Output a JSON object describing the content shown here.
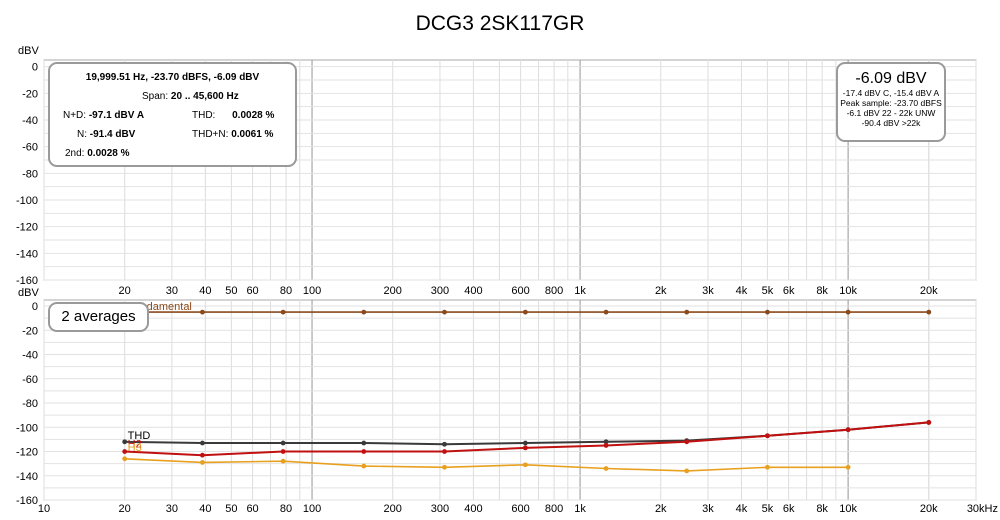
{
  "chart_data": {
    "type": "line",
    "title": "DCG3 2SK117GR",
    "top_panel": {
      "ylabel": "dBV",
      "ylim": [
        -160,
        5
      ],
      "yticks": [
        "0",
        "-20",
        "-40",
        "-60",
        "-80",
        "-100",
        "-120",
        "-140",
        "-160"
      ],
      "xscale": "log",
      "xlim": [
        10,
        30000
      ]
    },
    "bottom_panel": {
      "ylabel": "dBV",
      "ylim": [
        -160,
        5
      ],
      "yticks": [
        "0",
        "-20",
        "-40",
        "-60",
        "-80",
        "-100",
        "-120",
        "-140",
        "-160"
      ],
      "xscale": "log",
      "xlim": [
        10,
        30000
      ],
      "xtick_values": [
        10,
        20,
        30,
        40,
        50,
        60,
        80,
        100,
        200,
        300,
        400,
        600,
        800,
        1000,
        2000,
        3000,
        4000,
        5000,
        6000,
        8000,
        10000,
        20000,
        30000
      ],
      "xtick_labels": [
        "10",
        "20",
        "30",
        "40",
        "50",
        "60",
        "80",
        "100",
        "200",
        "300",
        "400",
        "600",
        "800",
        "1k",
        "2k",
        "3k",
        "4k",
        "5k",
        "6k",
        "8k",
        "10k",
        "20k",
        "30kHz"
      ],
      "series": [
        {
          "name": "Fundamental",
          "color": "#8b4a1c",
          "x": [
            20,
            39,
            78,
            156,
            312,
            625,
            1250,
            2500,
            5000,
            10000,
            20000
          ],
          "y": [
            -5,
            -5,
            -5,
            -5,
            -5,
            -5,
            -5,
            -5,
            -5,
            -5,
            -5
          ]
        },
        {
          "name": "THD",
          "color": "#3a3a3a",
          "x": [
            20,
            39,
            78,
            156,
            312,
            625,
            1250,
            2500,
            5000,
            10000,
            20000
          ],
          "y": [
            -112,
            -113,
            -113,
            -113,
            -114,
            -113,
            -112,
            -111,
            -107,
            -102,
            -96
          ]
        },
        {
          "name": "H2",
          "color": "#c01010",
          "x": [
            20,
            39,
            78,
            156,
            312,
            625,
            1250,
            2500,
            5000,
            10000,
            20000
          ],
          "y": [
            -120,
            -123,
            -120,
            -120,
            -120,
            -117,
            -115,
            -112,
            -107,
            -102,
            -96
          ]
        },
        {
          "name": "H3",
          "color": "#e8a020",
          "x": [
            20,
            39,
            78,
            156,
            312,
            625,
            1250,
            2500,
            5000,
            10000
          ],
          "y": [
            -126,
            -129,
            -128,
            -132,
            -133,
            -131,
            -134,
            -136,
            -133,
            -133
          ]
        }
      ]
    }
  },
  "measurements": {
    "header": "19,999.51 Hz, -23.70 dBFS, -6.09 dBV",
    "span_label": "Span:",
    "span_value": "20 .. 45,600 Hz",
    "nd_label": "N+D:",
    "nd_value": "-97.1 dBV A",
    "thd_label": "THD:",
    "thd_value": "0.0028 %",
    "n_label": "N:",
    "n_value": "-91.4 dBV",
    "thdn_label": "THD+N:",
    "thdn_value": "0.0061 %",
    "second_label": "2nd:",
    "second_value": "0.0028 %"
  },
  "level": {
    "main": "-6.09 dBV",
    "line1": "-17.4 dBV C, -15.4 dBV A",
    "line2": "Peak sample: -23.70 dBFS",
    "line3": "-6.1 dBV 22 - 22k UNW",
    "line4": "-90.4 dBV >22k"
  },
  "averages": "2 averages",
  "colors": {
    "grid_major": "#aaaaaa",
    "grid_minor": "#dddddd",
    "box_border": "#9a9a9a"
  }
}
